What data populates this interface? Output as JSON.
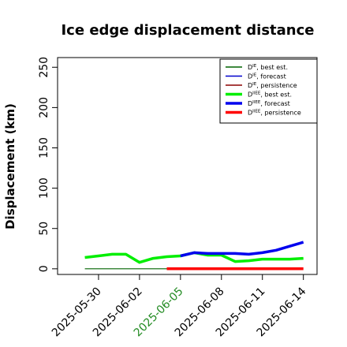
{
  "chart_data": {
    "type": "line",
    "title": "Ice edge displacement distance",
    "xlabel": "",
    "ylabel": "Displacement (km)",
    "ylim": [
      -7,
      262
    ],
    "yticks": [
      0,
      50,
      100,
      150,
      200,
      250
    ],
    "xlim": [
      "2025-05-27",
      "2025-06-15"
    ],
    "xticks": [
      {
        "date": "2025-05-30",
        "label": "2025-05-30",
        "color": "#000000"
      },
      {
        "date": "2025-06-02",
        "label": "2025-06-02",
        "color": "#000000"
      },
      {
        "date": "2025-06-05",
        "label": "2025-06-05",
        "color": "#228b22"
      },
      {
        "date": "2025-06-08",
        "label": "2025-06-08",
        "color": "#000000"
      },
      {
        "date": "2025-06-11",
        "label": "2025-06-11",
        "color": "#000000"
      },
      {
        "date": "2025-06-14",
        "label": "2025-06-14",
        "color": "#000000"
      }
    ],
    "grid": false,
    "legend_position": "top-right",
    "series": [
      {
        "name": "D^IE, best est.",
        "color": "#006400",
        "width": 1.2,
        "points": [
          [
            "2025-05-29",
            0
          ],
          [
            "2025-06-05",
            0
          ]
        ]
      },
      {
        "name": "D^IE, forecast",
        "color": "#0000cd",
        "width": 1.2,
        "points": []
      },
      {
        "name": "D^IE, persistence",
        "color": "#8b0000",
        "width": 1.2,
        "points": []
      },
      {
        "name": "D^IIEE, best est.",
        "color": "#00ee00",
        "width": 3.5,
        "points": [
          [
            "2025-05-29",
            14
          ],
          [
            "2025-05-30",
            16
          ],
          [
            "2025-05-31",
            18
          ],
          [
            "2025-06-01",
            18
          ],
          [
            "2025-06-02",
            8
          ],
          [
            "2025-06-03",
            13
          ],
          [
            "2025-06-04",
            15
          ],
          [
            "2025-06-05",
            16
          ],
          [
            "2025-06-06",
            20
          ],
          [
            "2025-06-07",
            17
          ],
          [
            "2025-06-08",
            17
          ],
          [
            "2025-06-09",
            9
          ],
          [
            "2025-06-10",
            10
          ],
          [
            "2025-06-11",
            12
          ],
          [
            "2025-06-12",
            12
          ],
          [
            "2025-06-13",
            12
          ],
          [
            "2025-06-14",
            13
          ]
        ]
      },
      {
        "name": "D^IIEE, forecast",
        "color": "#0000ee",
        "width": 3.5,
        "points": [
          [
            "2025-06-05",
            16
          ],
          [
            "2025-06-06",
            20
          ],
          [
            "2025-06-07",
            19
          ],
          [
            "2025-06-08",
            19
          ],
          [
            "2025-06-09",
            19
          ],
          [
            "2025-06-10",
            18
          ],
          [
            "2025-06-11",
            20
          ],
          [
            "2025-06-12",
            23
          ],
          [
            "2025-06-13",
            28
          ],
          [
            "2025-06-14",
            33
          ]
        ]
      },
      {
        "name": "D^IIEE, persistence",
        "color": "#ff0000",
        "width": 3.5,
        "points": [
          [
            "2025-06-04",
            0
          ],
          [
            "2025-06-14",
            0
          ]
        ]
      }
    ],
    "legend": [
      {
        "base": "D",
        "sup": "IE",
        "rest": ", best est.",
        "color": "#006400",
        "width": 1.5
      },
      {
        "base": "D",
        "sup": "IE",
        "rest": ", forecast",
        "color": "#0000cd",
        "width": 1.5
      },
      {
        "base": "D",
        "sup": "IE",
        "rest": ", persistence",
        "color": "#8b0000",
        "width": 1.5
      },
      {
        "base": "D",
        "sup": "IIEE",
        "rest": ", best est.",
        "color": "#00ee00",
        "width": 3.5
      },
      {
        "base": "D",
        "sup": "IIEE",
        "rest": ", forecast",
        "color": "#0000ee",
        "width": 3.5
      },
      {
        "base": "D",
        "sup": "IIEE",
        "rest": ", persistence",
        "color": "#ff0000",
        "width": 3.5
      }
    ]
  }
}
